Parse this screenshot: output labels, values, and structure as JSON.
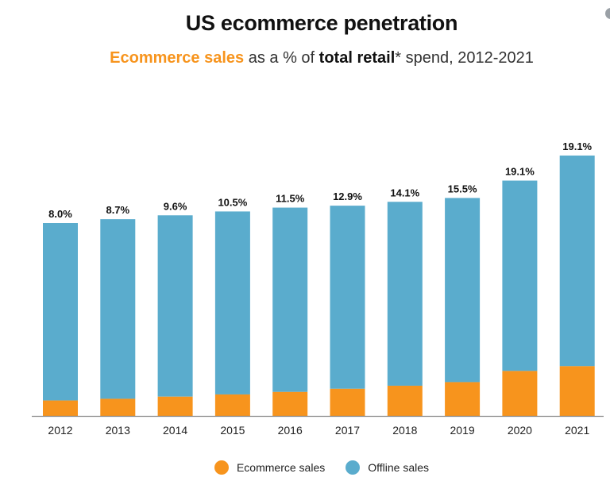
{
  "colors": {
    "ecommerce": "#f7941d",
    "offline": "#5aaccd",
    "axis": "#888888",
    "text": "#111111"
  },
  "chart_data": {
    "type": "bar",
    "stacked": true,
    "title": "US ecommerce penetration",
    "subtitle": {
      "part1": "Ecommerce sales",
      "part2": " as a % of ",
      "part3": "total retail",
      "part4": "* spend, 2012-2021"
    },
    "categories": [
      "2012",
      "2013",
      "2014",
      "2015",
      "2016",
      "2017",
      "2018",
      "2019",
      "2020",
      "2021"
    ],
    "data_labels": [
      "8.0%",
      "8.7%",
      "9.6%",
      "10.5%",
      "11.5%",
      "12.9%",
      "14.1%",
      "15.5%",
      "19.1%",
      "19.1%"
    ],
    "series": [
      {
        "name": "Ecommerce sales",
        "values": [
          8.0,
          8.7,
          9.6,
          10.5,
          11.5,
          12.9,
          14.1,
          15.5,
          19.1,
          19.1
        ]
      },
      {
        "name": "Offline sales",
        "values": [
          92.0,
          91.3,
          90.4,
          89.5,
          88.5,
          87.1,
          85.9,
          84.5,
          80.9,
          80.9
        ]
      }
    ],
    "relative_bar_totals": [
      100,
      102,
      104,
      106,
      108,
      109,
      111,
      113,
      122,
      135
    ],
    "xlabel": "",
    "ylabel": "",
    "grid": false,
    "legend_position": "bottom-center"
  }
}
